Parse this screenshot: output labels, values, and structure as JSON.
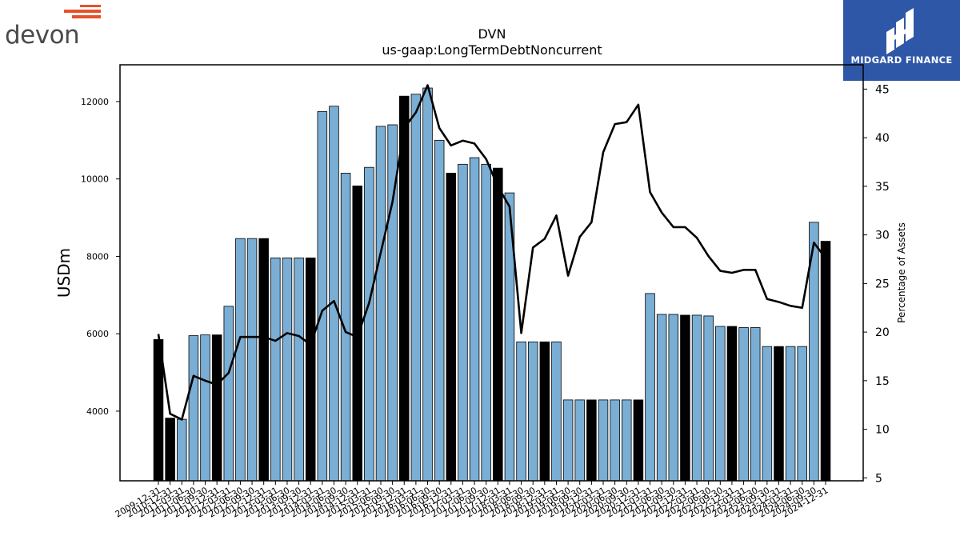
{
  "logos": {
    "left_text": "devon",
    "right_text": "MIDGARD FINANCE"
  },
  "colors": {
    "bar_light": "#7aaed4",
    "bar_dark": "#000000",
    "line": "#000000",
    "logo_orange": "#e8502a",
    "logo_blue": "#2f57a8"
  },
  "chart_data": {
    "type": "bar",
    "title": "DVN",
    "subtitle": "us-gaap:LongTermDebtNoncurrent",
    "ylabel": "USDm",
    "y2label": "Percentage of Assets",
    "ylim": [
      2200,
      12950
    ],
    "y2lim": [
      4.7,
      47.5
    ],
    "yticks": [
      4000,
      6000,
      8000,
      10000,
      12000
    ],
    "y2ticks": [
      5,
      10,
      15,
      20,
      25,
      30,
      35,
      40,
      45
    ],
    "categories": [
      "2009-12-31",
      "2010-12-31",
      "2011-03-31",
      "2011-06-30",
      "2011-09-30",
      "2011-12-31",
      "2012-03-31",
      "2012-06-30",
      "2012-09-30",
      "2012-12-31",
      "2013-03-31",
      "2013-06-30",
      "2013-09-30",
      "2013-12-31",
      "2014-03-31",
      "2014-06-30",
      "2014-09-30",
      "2014-12-31",
      "2015-03-31",
      "2015-06-30",
      "2015-09-30",
      "2015-12-31",
      "2016-03-31",
      "2016-06-30",
      "2016-09-30",
      "2016-12-31",
      "2017-03-31",
      "2017-06-30",
      "2017-09-30",
      "2017-12-31",
      "2018-03-31",
      "2018-06-30",
      "2018-09-30",
      "2018-12-31",
      "2019-03-31",
      "2019-06-30",
      "2019-09-30",
      "2019-12-31",
      "2020-03-31",
      "2020-06-30",
      "2020-09-30",
      "2020-12-31",
      "2021-03-31",
      "2021-06-30",
      "2021-09-30",
      "2021-12-31",
      "2022-03-31",
      "2022-06-30",
      "2022-09-30",
      "2022-12-31",
      "2023-03-31",
      "2023-06-30",
      "2023-09-30",
      "2023-12-31",
      "2024-03-31",
      "2024-06-30",
      "2024-09-30",
      "2024-12-31"
    ],
    "series": [
      {
        "type": "bar",
        "values": [
          5850,
          3820,
          3790,
          5950,
          5970,
          5970,
          6710,
          8460,
          8460,
          8460,
          7960,
          7960,
          7960,
          7960,
          11740,
          11880,
          10150,
          9820,
          10300,
          11360,
          11400,
          12140,
          12190,
          12350,
          11000,
          10150,
          10380,
          10550,
          10380,
          10280,
          9640,
          5790,
          5790,
          5790,
          5790,
          4290,
          4290,
          4290,
          4290,
          4290,
          4290,
          4290,
          7040,
          6500,
          6500,
          6480,
          6480,
          6460,
          6190,
          6190,
          6160,
          6160,
          5670,
          5670,
          5670,
          5670,
          8880,
          8390
        ],
        "highlight_year_end": [
          true,
          true,
          false,
          false,
          false,
          true,
          false,
          false,
          false,
          true,
          false,
          false,
          false,
          true,
          false,
          false,
          false,
          true,
          false,
          false,
          false,
          true,
          false,
          false,
          false,
          true,
          false,
          false,
          false,
          true,
          false,
          false,
          false,
          true,
          false,
          false,
          false,
          true,
          false,
          false,
          false,
          true,
          false,
          false,
          false,
          true,
          false,
          false,
          false,
          true,
          false,
          false,
          false,
          true,
          false,
          false,
          false,
          true
        ]
      },
      {
        "type": "line",
        "axis": "right",
        "values": [
          19.8,
          11.6,
          11.0,
          15.5,
          15.0,
          14.6,
          15.8,
          19.5,
          19.5,
          19.5,
          19.1,
          19.9,
          19.6,
          18.7,
          22.2,
          23.2,
          20.0,
          19.5,
          23.0,
          28.2,
          33.4,
          41.0,
          42.6,
          45.4,
          41.0,
          39.2,
          39.7,
          39.4,
          37.8,
          35.0,
          32.9,
          19.9,
          28.7,
          29.6,
          32.0,
          25.8,
          29.8,
          31.3,
          38.5,
          41.4,
          41.6,
          43.4,
          34.4,
          32.3,
          30.8,
          30.8,
          29.7,
          27.8,
          26.3,
          26.1,
          26.4,
          26.4,
          23.4,
          23.1,
          22.7,
          22.5,
          29.2,
          27.6
        ]
      }
    ]
  }
}
